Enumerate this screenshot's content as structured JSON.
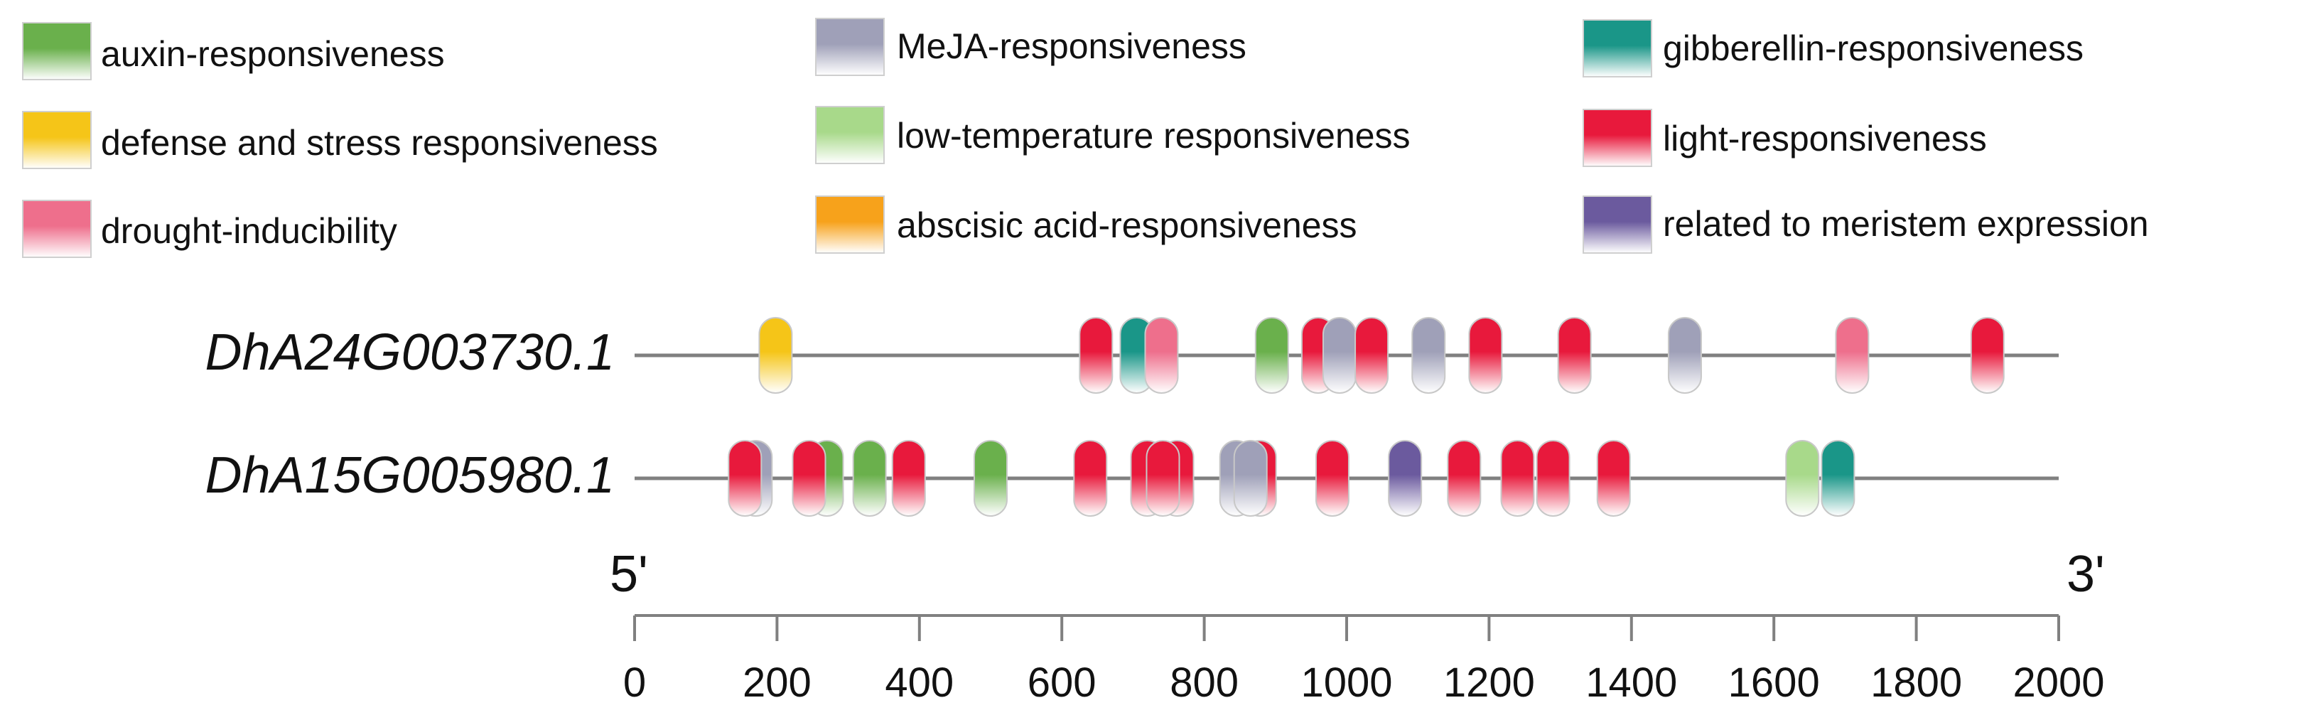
{
  "legend": [
    {
      "key": "auxin",
      "label": "auxin-responsiveness",
      "color": "#6ab04c"
    },
    {
      "key": "meja",
      "label": "MeJA-responsiveness",
      "color": "#9fa0b8"
    },
    {
      "key": "gibberellin",
      "label": "gibberellin-responsiveness",
      "color": "#1a9688"
    },
    {
      "key": "defense",
      "label": "defense and stress responsiveness",
      "color": "#f5c518"
    },
    {
      "key": "lowtemp",
      "label": "low-temperature responsiveness",
      "color": "#a8d98a"
    },
    {
      "key": "light",
      "label": "light-responsiveness",
      "color": "#e8193c"
    },
    {
      "key": "drought",
      "label": "drought-inducibility",
      "color": "#ee6f8c"
    },
    {
      "key": "aba",
      "label": "abscisic acid-responsiveness",
      "color": "#f7a21b"
    },
    {
      "key": "meristem",
      "label": "related to meristem expression",
      "color": "#6b5a9e"
    }
  ],
  "chart_data": {
    "type": "diagram",
    "title": "",
    "axis": {
      "min": 0,
      "max": 2000,
      "ticks": [
        0,
        200,
        400,
        600,
        800,
        1000,
        1200,
        1400,
        1600,
        1800,
        2000
      ]
    },
    "end_labels": {
      "left": "5'",
      "right": "3'"
    },
    "genes": [
      {
        "name": "DhA24G003730.1",
        "elements": [
          {
            "pos": 198,
            "type": "defense"
          },
          {
            "pos": 648,
            "type": "light"
          },
          {
            "pos": 705,
            "type": "gibberellin"
          },
          {
            "pos": 740,
            "type": "drought"
          },
          {
            "pos": 895,
            "type": "auxin"
          },
          {
            "pos": 960,
            "type": "light"
          },
          {
            "pos": 990,
            "type": "meja"
          },
          {
            "pos": 1035,
            "type": "light"
          },
          {
            "pos": 1115,
            "type": "meja"
          },
          {
            "pos": 1195,
            "type": "light"
          },
          {
            "pos": 1320,
            "type": "light"
          },
          {
            "pos": 1475,
            "type": "meja"
          },
          {
            "pos": 1710,
            "type": "drought"
          },
          {
            "pos": 1900,
            "type": "light"
          }
        ]
      },
      {
        "name": "DhA15G005980.1",
        "elements": [
          {
            "pos": 170,
            "type": "meja"
          },
          {
            "pos": 155,
            "type": "light"
          },
          {
            "pos": 270,
            "type": "auxin"
          },
          {
            "pos": 245,
            "type": "light"
          },
          {
            "pos": 330,
            "type": "auxin"
          },
          {
            "pos": 385,
            "type": "light"
          },
          {
            "pos": 500,
            "type": "auxin"
          },
          {
            "pos": 640,
            "type": "light"
          },
          {
            "pos": 720,
            "type": "light"
          },
          {
            "pos": 762,
            "type": "light"
          },
          {
            "pos": 742,
            "type": "light"
          },
          {
            "pos": 878,
            "type": "light"
          },
          {
            "pos": 845,
            "type": "meja"
          },
          {
            "pos": 865,
            "type": "meja"
          },
          {
            "pos": 980,
            "type": "light"
          },
          {
            "pos": 1082,
            "type": "meristem"
          },
          {
            "pos": 1165,
            "type": "light"
          },
          {
            "pos": 1240,
            "type": "light"
          },
          {
            "pos": 1290,
            "type": "light"
          },
          {
            "pos": 1375,
            "type": "light"
          },
          {
            "pos": 1640,
            "type": "lowtemp"
          },
          {
            "pos": 1690,
            "type": "gibberellin"
          }
        ]
      }
    ]
  }
}
